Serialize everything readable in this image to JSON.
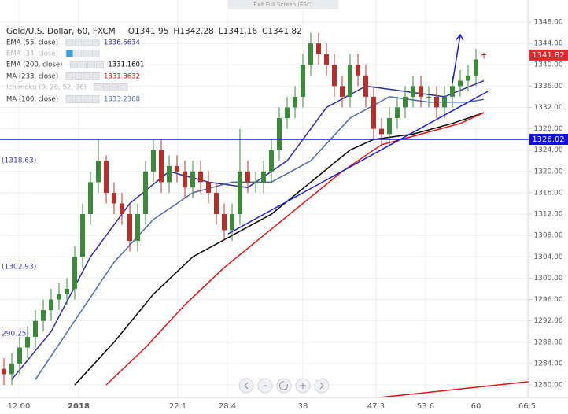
{
  "top_bar": "Exit Full Screen (ESC)",
  "chart_data": {
    "type": "candlestick",
    "title": "Gold/U.S. Dollar, 60, FXCM",
    "ohlc_labels": [
      "O",
      "H",
      "L",
      "C"
    ],
    "open": [
      1283,
      1282,
      1284,
      1287,
      1289,
      1292,
      1294,
      1296,
      1297,
      1298,
      1304,
      1312,
      1318,
      1322,
      1316,
      1314,
      1312,
      1307,
      1312,
      1320,
      1324,
      1318,
      1321,
      1320,
      1317,
      1320,
      1318,
      1316,
      1312,
      1309,
      1312,
      1320,
      1318,
      1318,
      1320,
      1324,
      1330,
      1332,
      1334,
      1340,
      1344,
      1342,
      1340,
      1336,
      1334,
      1340,
      1338,
      1334,
      1328,
      1327,
      1330,
      1332,
      1334,
      1336,
      1334,
      1334,
      1332,
      1334,
      1336,
      1337,
      1338,
      1341.95
    ],
    "high": [
      1285,
      1286,
      1289,
      1291,
      1294,
      1296,
      1298,
      1299,
      1300,
      1306,
      1314,
      1320,
      1326,
      1323,
      1318,
      1316,
      1314,
      1314,
      1322,
      1326,
      1326,
      1323,
      1323,
      1322,
      1322,
      1322,
      1320,
      1318,
      1314,
      1314,
      1328,
      1322,
      1320,
      1322,
      1326,
      1332,
      1334,
      1336,
      1342,
      1346,
      1346,
      1344,
      1342,
      1338,
      1342,
      1342,
      1340,
      1336,
      1330,
      1332,
      1334,
      1336,
      1338,
      1338,
      1336,
      1336,
      1336,
      1338,
      1339,
      1340,
      1343,
      1342.28
    ],
    "low": [
      1280,
      1280,
      1282,
      1285,
      1287,
      1290,
      1292,
      1294,
      1295,
      1296,
      1302,
      1310,
      1316,
      1314,
      1312,
      1310,
      1305,
      1305,
      1310,
      1318,
      1316,
      1316,
      1318,
      1315,
      1315,
      1316,
      1314,
      1310,
      1307,
      1307,
      1310,
      1316,
      1316,
      1316,
      1318,
      1322,
      1328,
      1330,
      1332,
      1338,
      1340,
      1338,
      1334,
      1332,
      1332,
      1336,
      1332,
      1326,
      1325,
      1325,
      1328,
      1330,
      1332,
      1332,
      1332,
      1330,
      1330,
      1332,
      1334,
      1335,
      1336,
      1341.16
    ],
    "close": [
      1282,
      1284,
      1287,
      1289,
      1292,
      1294,
      1296,
      1297,
      1298,
      1304,
      1312,
      1318,
      1322,
      1316,
      1314,
      1312,
      1307,
      1312,
      1320,
      1324,
      1318,
      1321,
      1320,
      1317,
      1320,
      1318,
      1316,
      1312,
      1309,
      1312,
      1320,
      1318,
      1318,
      1320,
      1324,
      1330,
      1332,
      1334,
      1340,
      1344,
      1342,
      1340,
      1336,
      1334,
      1340,
      1338,
      1334,
      1328,
      1327,
      1330,
      1332,
      1334,
      1336,
      1334,
      1334,
      1332,
      1334,
      1336,
      1337,
      1338,
      1341,
      1341.82
    ],
    "up_color": "#3a8a3a",
    "down_color": "#b3302c",
    "last_price_color": "#e8262c",
    "indicators": [
      {
        "name": "EMA (55, close)",
        "value": 1336.6634,
        "color": "#2b2b9e",
        "x": [
          1,
          6,
          11,
          16,
          21,
          26,
          31,
          36,
          41,
          46,
          51,
          56,
          61
        ],
        "values": [
          1281,
          1290,
          1304,
          1314,
          1320,
          1318,
          1317,
          1322,
          1332,
          1336,
          1335,
          1334,
          1337
        ]
      },
      {
        "name": "EMA (34, close)",
        "color": "#b8b8b8"
      },
      {
        "name": "EMA (200, close)",
        "value": 1331.1601,
        "color": "#000000",
        "x": [
          9,
          14,
          19,
          24,
          29,
          34,
          39,
          44,
          47,
          52,
          57,
          61
        ],
        "values": [
          1280,
          1288,
          1297,
          1304,
          1308,
          1312,
          1318,
          1324,
          1326,
          1327,
          1329,
          1331
        ]
      },
      {
        "name": "MA (233, close)",
        "value": 1331.3632,
        "color": "#e01010",
        "x": [
          13,
          18,
          23,
          28,
          33,
          38,
          43,
          48,
          53,
          58,
          61
        ],
        "values": [
          1280,
          1287,
          1295,
          1302,
          1308,
          1314,
          1320,
          1325,
          1327,
          1329,
          1331
        ]
      },
      {
        "name": "Ichimoku (9, 26, 52, 26)",
        "color": "#b8b8b8"
      },
      {
        "name": "MA (100, close)",
        "value": 1333.2368,
        "color": "#4a6aa8",
        "x": [
          4,
          9,
          14,
          19,
          24,
          29,
          34,
          39,
          44,
          49,
          54,
          59,
          61
        ],
        "values": [
          1281,
          1292,
          1303,
          1311,
          1316,
          1318,
          1318,
          1322,
          1330,
          1334,
          1333,
          1333,
          1333.5
        ]
      }
    ],
    "horizontal_line": {
      "value": 1326.02,
      "color": "#1010d8"
    },
    "trendlines": [
      {
        "color": "#1c1cc8",
        "x": [
          28.5,
          61.5
        ],
        "values": [
          1308.3,
          1335
        ]
      },
      {
        "color": "#e01010",
        "x": [
          47.5,
          66.7
        ],
        "values": [
          1277.6,
          1280.6
        ]
      }
    ],
    "arrow": {
      "color": "#1c1cc8",
      "x": [
        57,
        58
      ],
      "values": [
        1336.5,
        1345.6
      ]
    },
    "side_labels": [
      "(1318.63)",
      "(1302.93)",
      "290.25)"
    ],
    "xlim": [
      -0.5,
      66.7
    ],
    "xticks": [
      {
        "value": 1.9,
        "label": "12:00"
      },
      {
        "value": 9.5,
        "label": "2018"
      },
      22.1,
      28.4,
      38,
      47.3,
      53.6,
      60,
      66.5
    ],
    "ylim": [
      1277.64,
      1352.13
    ],
    "yticks": [
      {
        "value": 1280,
        "label": "1280.00"
      },
      {
        "value": 1284,
        "label": "1284.00"
      },
      {
        "value": 1288,
        "label": "1288.00"
      },
      {
        "value": 1292,
        "label": "1292.00"
      },
      {
        "value": 1296,
        "label": "1296.00"
      },
      {
        "value": 1300,
        "label": "1300.00"
      },
      {
        "value": 1304,
        "label": "1304.00"
      },
      {
        "value": 1308,
        "label": "1308.00"
      },
      {
        "value": 1312,
        "label": "1312.00"
      },
      {
        "value": 1316,
        "label": "1316.00"
      },
      {
        "value": 1320,
        "label": "1320.00"
      },
      {
        "value": 1324,
        "label": "1324.00"
      },
      {
        "value": 1328,
        "label": "1328.00"
      },
      {
        "value": 1332,
        "label": "1332.00"
      },
      {
        "value": 1336,
        "label": "1336.00"
      },
      {
        "value": 1340,
        "label": "1340.00"
      },
      {
        "value": 1344,
        "label": "1344.00"
      },
      {
        "value": 1348,
        "label": "1348.00"
      }
    ],
    "grid": true
  }
}
